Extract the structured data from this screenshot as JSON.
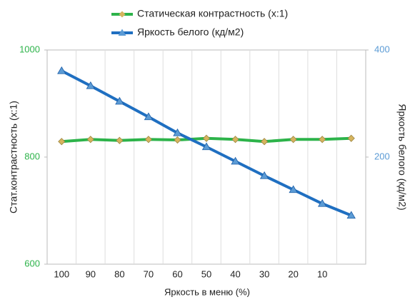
{
  "chart_data": {
    "type": "line",
    "x_label": "Яркость в меню (%)",
    "y_label": "Стат.контрастность  (x:1)",
    "y2_label": "Яркость белого (кд/м2)",
    "categories": [
      "100",
      "90",
      "80",
      "70",
      "60",
      "50",
      "40",
      "30",
      "20",
      "10",
      null
    ],
    "series": [
      {
        "name": "Статическая контрастность (x:1)",
        "color": "#2db34a",
        "marker_color": "#d6b45e",
        "marker": "diamond",
        "values": [
          829,
          833,
          831,
          833,
          832,
          835,
          833,
          829,
          833,
          833,
          835
        ]
      },
      {
        "name": "Яркость белого (кд/м2)",
        "color": "#1f6fc1",
        "marker_color": "#5b9bd5",
        "marker": "triangle",
        "axis": "y2",
        "values": [
          361,
          333,
          304,
          275,
          245,
          219,
          192,
          165,
          139,
          113,
          91
        ]
      }
    ],
    "ylim": [
      600,
      1000
    ],
    "yticks": [
      600,
      800,
      1000
    ],
    "ytick_color": "#2db34a",
    "y2lim": [
      0,
      400
    ],
    "y2ticks": [
      200,
      400
    ],
    "y2tick_color": "#5b9bd5",
    "legend": "top"
  }
}
